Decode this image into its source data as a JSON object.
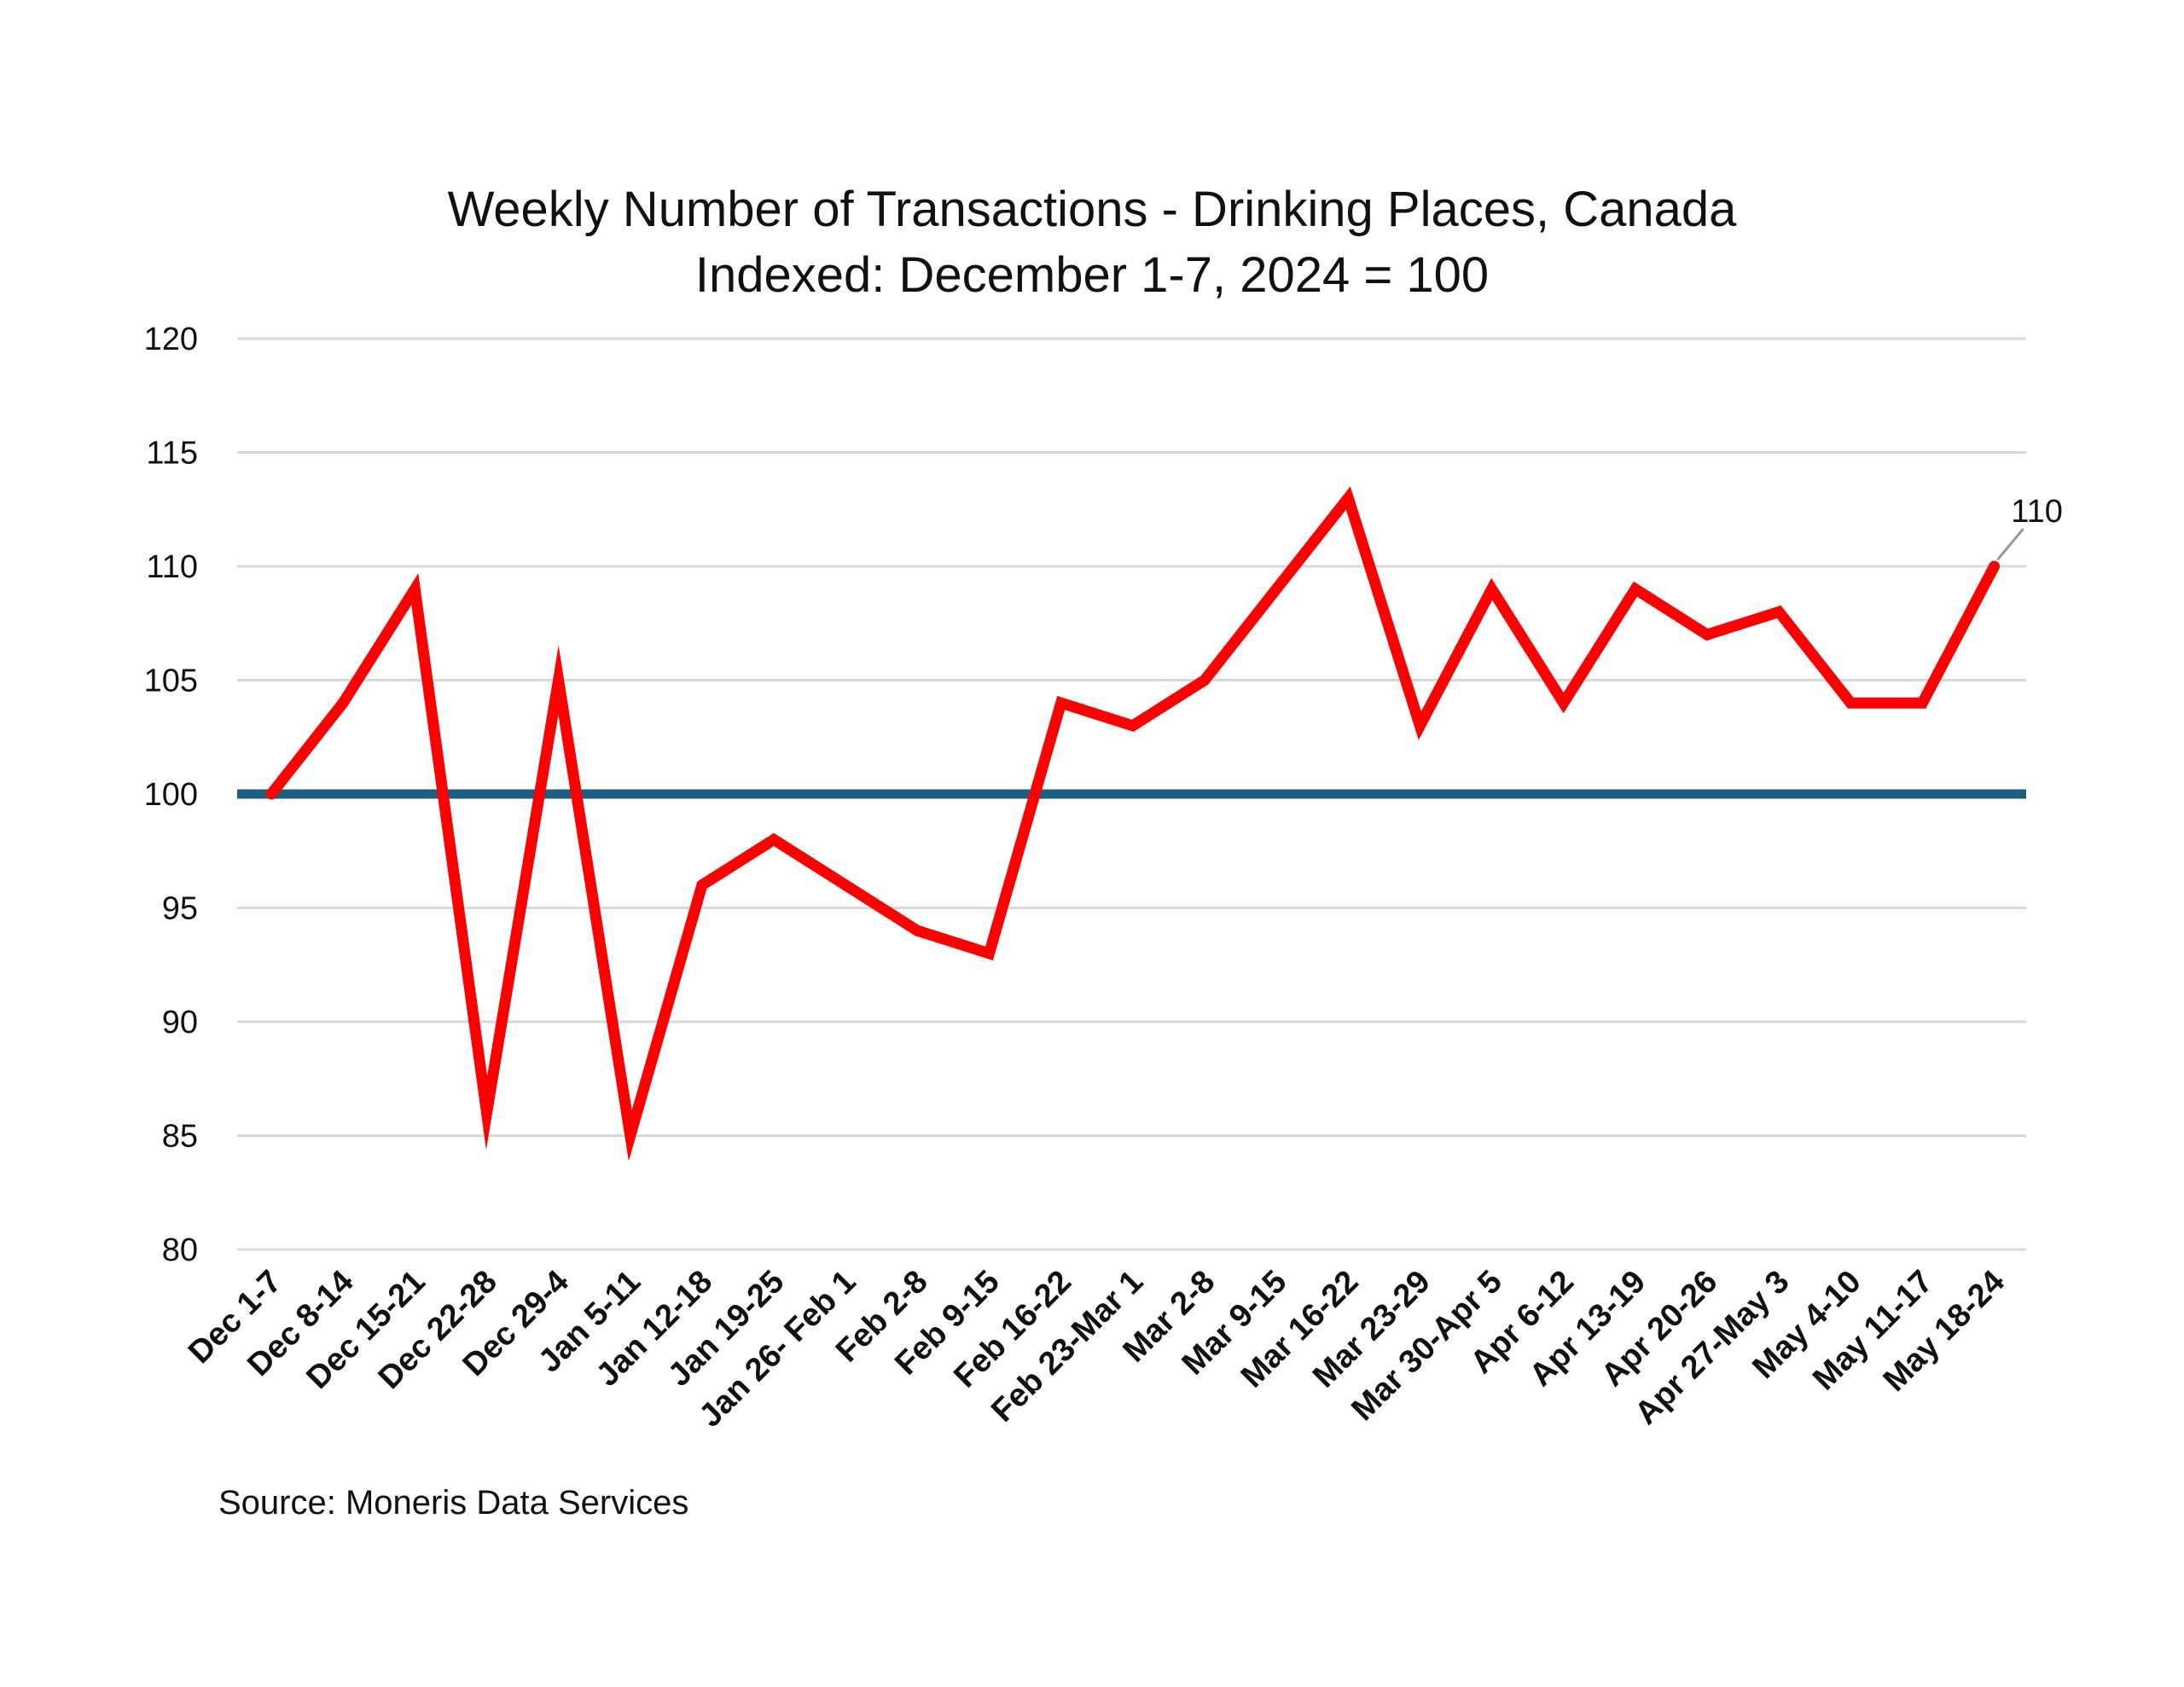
{
  "chart_data": {
    "type": "line",
    "title": "Weekly Number of Transactions - Drinking Places, Canada",
    "subtitle": "Indexed: December 1-7, 2024 = 100",
    "source": "Source: Moneris Data Services",
    "xlabel": "",
    "ylabel": "",
    "ylim": [
      80,
      120
    ],
    "yticks": [
      80,
      85,
      90,
      95,
      100,
      105,
      110,
      115,
      120
    ],
    "grid": true,
    "categories": [
      "Dec 1-7",
      "Dec 8-14",
      "Dec 15-21",
      "Dec 22-28",
      "Dec 29-4",
      "Jan 5-11",
      "Jan 12-18",
      "Jan 19-25",
      "Jan 26- Feb 1",
      "Feb 2-8",
      "Feb 9-15",
      "Feb 16-22",
      "Feb 23-Mar 1",
      "Mar 2-8",
      "Mar 9-15",
      "Mar 16-22",
      "Mar 23-29",
      "Mar 30-Apr 5",
      "Apr 6-12",
      "Apr 13-19",
      "Apr 20-26",
      "Apr 27-May 3",
      "May 4-10",
      "May 11-17",
      "May 18-24"
    ],
    "series": [
      {
        "color": "#ff0000",
        "values": [
          100,
          104,
          109,
          86,
          105,
          85,
          96,
          98,
          96,
          94,
          93,
          104,
          103,
          105,
          109,
          113,
          103,
          109,
          104,
          109,
          107,
          108,
          104,
          104,
          110
        ]
      }
    ],
    "baseline": {
      "value": 100,
      "color": "#1b5e80"
    },
    "annotations": [
      {
        "category": "May 18-24",
        "text": "110"
      }
    ]
  }
}
